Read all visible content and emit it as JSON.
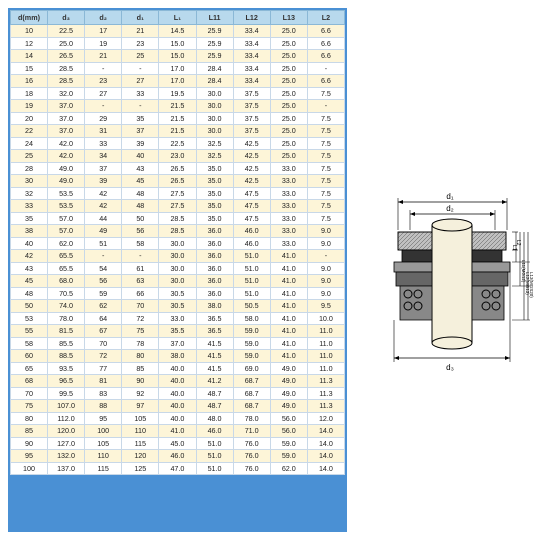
{
  "headers": [
    "d(mm)",
    "d₃",
    "d₂",
    "d₁",
    "L₁",
    "L11",
    "L12",
    "L13",
    "L2"
  ],
  "rows": [
    [
      "10",
      "22.5",
      "17",
      "21",
      "14.5",
      "25.9",
      "33.4",
      "25.0",
      "6.6"
    ],
    [
      "12",
      "25.0",
      "19",
      "23",
      "15.0",
      "25.9",
      "33.4",
      "25.0",
      "6.6"
    ],
    [
      "14",
      "26.5",
      "21",
      "25",
      "15.0",
      "25.9",
      "33.4",
      "25.0",
      "6.6"
    ],
    [
      "15",
      "28.5",
      "-",
      "-",
      "17.0",
      "28.4",
      "33.4",
      "25.0",
      "-"
    ],
    [
      "16",
      "28.5",
      "23",
      "27",
      "17.0",
      "28.4",
      "33.4",
      "25.0",
      "6.6"
    ],
    [
      "18",
      "32.0",
      "27",
      "33",
      "19.5",
      "30.0",
      "37.5",
      "25.0",
      "7.5"
    ],
    [
      "19",
      "37.0",
      "-",
      "-",
      "21.5",
      "30.0",
      "37.5",
      "25.0",
      "-"
    ],
    [
      "20",
      "37.0",
      "29",
      "35",
      "21.5",
      "30.0",
      "37.5",
      "25.0",
      "7.5"
    ],
    [
      "22",
      "37.0",
      "31",
      "37",
      "21.5",
      "30.0",
      "37.5",
      "25.0",
      "7.5"
    ],
    [
      "24",
      "42.0",
      "33",
      "39",
      "22.5",
      "32.5",
      "42.5",
      "25.0",
      "7.5"
    ],
    [
      "25",
      "42.0",
      "34",
      "40",
      "23.0",
      "32.5",
      "42.5",
      "25.0",
      "7.5"
    ],
    [
      "28",
      "49.0",
      "37",
      "43",
      "26.5",
      "35.0",
      "42.5",
      "33.0",
      "7.5"
    ],
    [
      "30",
      "49.0",
      "39",
      "45",
      "26.5",
      "35.0",
      "42.5",
      "33.0",
      "7.5"
    ],
    [
      "32",
      "53.5",
      "42",
      "48",
      "27.5",
      "35.0",
      "47.5",
      "33.0",
      "7.5"
    ],
    [
      "33",
      "53.5",
      "42",
      "48",
      "27.5",
      "35.0",
      "47.5",
      "33.0",
      "7.5"
    ],
    [
      "35",
      "57.0",
      "44",
      "50",
      "28.5",
      "35.0",
      "47.5",
      "33.0",
      "7.5"
    ],
    [
      "38",
      "57.0",
      "49",
      "56",
      "28.5",
      "36.0",
      "46.0",
      "33.0",
      "9.0"
    ],
    [
      "40",
      "62.0",
      "51",
      "58",
      "30.0",
      "36.0",
      "46.0",
      "33.0",
      "9.0"
    ],
    [
      "42",
      "65.5",
      "-",
      "-",
      "30.0",
      "36.0",
      "51.0",
      "41.0",
      "-"
    ],
    [
      "43",
      "65.5",
      "54",
      "61",
      "30.0",
      "36.0",
      "51.0",
      "41.0",
      "9.0"
    ],
    [
      "45",
      "68.0",
      "56",
      "63",
      "30.0",
      "36.0",
      "51.0",
      "41.0",
      "9.0"
    ],
    [
      "48",
      "70.5",
      "59",
      "66",
      "30.5",
      "36.0",
      "51.0",
      "41.0",
      "9.0"
    ],
    [
      "50",
      "74.0",
      "62",
      "70",
      "30.5",
      "38.0",
      "50.5",
      "41.0",
      "9.5"
    ],
    [
      "53",
      "78.0",
      "64",
      "72",
      "33.0",
      "36.5",
      "58.0",
      "41.0",
      "10.0"
    ],
    [
      "55",
      "81.5",
      "67",
      "75",
      "35.5",
      "36.5",
      "59.0",
      "41.0",
      "11.0"
    ],
    [
      "58",
      "85.5",
      "70",
      "78",
      "37.0",
      "41.5",
      "59.0",
      "41.0",
      "11.0"
    ],
    [
      "60",
      "88.5",
      "72",
      "80",
      "38.0",
      "41.5",
      "59.0",
      "41.0",
      "11.0"
    ],
    [
      "65",
      "93.5",
      "77",
      "85",
      "40.0",
      "41.5",
      "69.0",
      "49.0",
      "11.0"
    ],
    [
      "68",
      "96.5",
      "81",
      "90",
      "40.0",
      "41.2",
      "68.7",
      "49.0",
      "11.3"
    ],
    [
      "70",
      "99.5",
      "83",
      "92",
      "40.0",
      "48.7",
      "68.7",
      "49.0",
      "11.3"
    ],
    [
      "75",
      "107.0",
      "88",
      "97",
      "40.0",
      "48.7",
      "68.7",
      "49.0",
      "11.3"
    ],
    [
      "80",
      "112.0",
      "95",
      "105",
      "40.0",
      "48.0",
      "78.0",
      "56.0",
      "12.0"
    ],
    [
      "85",
      "120.0",
      "100",
      "110",
      "41.0",
      "46.0",
      "71.0",
      "56.0",
      "14.0"
    ],
    [
      "90",
      "127.0",
      "105",
      "115",
      "45.0",
      "51.0",
      "76.0",
      "59.0",
      "14.0"
    ],
    [
      "95",
      "132.0",
      "110",
      "120",
      "46.0",
      "51.0",
      "76.0",
      "59.0",
      "14.0"
    ],
    [
      "100",
      "137.0",
      "115",
      "125",
      "47.0",
      "51.0",
      "76.0",
      "62.0",
      "14.0"
    ]
  ],
  "diagram": {
    "labels": {
      "d1": "d₁",
      "d2": "d₂",
      "d3": "d₃",
      "L1": "L1",
      "L2": "L2",
      "L11": "L11(MG12)",
      "L12": "L12(MG13)",
      "L13": "L13(MGS20)"
    }
  }
}
